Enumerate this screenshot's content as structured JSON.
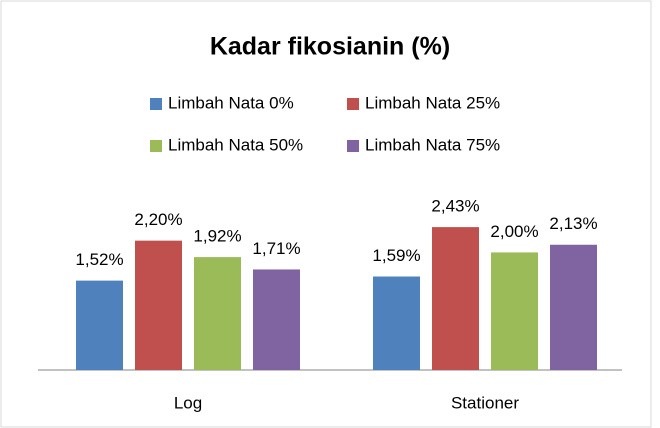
{
  "chart_data": {
    "type": "bar",
    "title": "Kadar fikosianin (%)",
    "categories": [
      "Log",
      "Stationer"
    ],
    "series": [
      {
        "name": "Limbah Nata 0%",
        "color": "#4f81bd",
        "values": [
          1.52,
          1.59
        ],
        "value_labels": [
          "1,52%",
          "1,59%"
        ]
      },
      {
        "name": "Limbah Nata 25%",
        "color": "#c0504d",
        "values": [
          2.2,
          2.43
        ],
        "value_labels": [
          "2,20%",
          "2,43%"
        ]
      },
      {
        "name": "Limbah Nata 50%",
        "color": "#9bbb59",
        "values": [
          1.92,
          2.0
        ],
        "value_labels": [
          "1,92%",
          "2,00%"
        ]
      },
      {
        "name": "Limbah Nata 75%",
        "color": "#8064a2",
        "values": [
          1.71,
          2.13
        ],
        "value_labels": [
          "1,71%",
          "2,13%"
        ]
      }
    ]
  }
}
